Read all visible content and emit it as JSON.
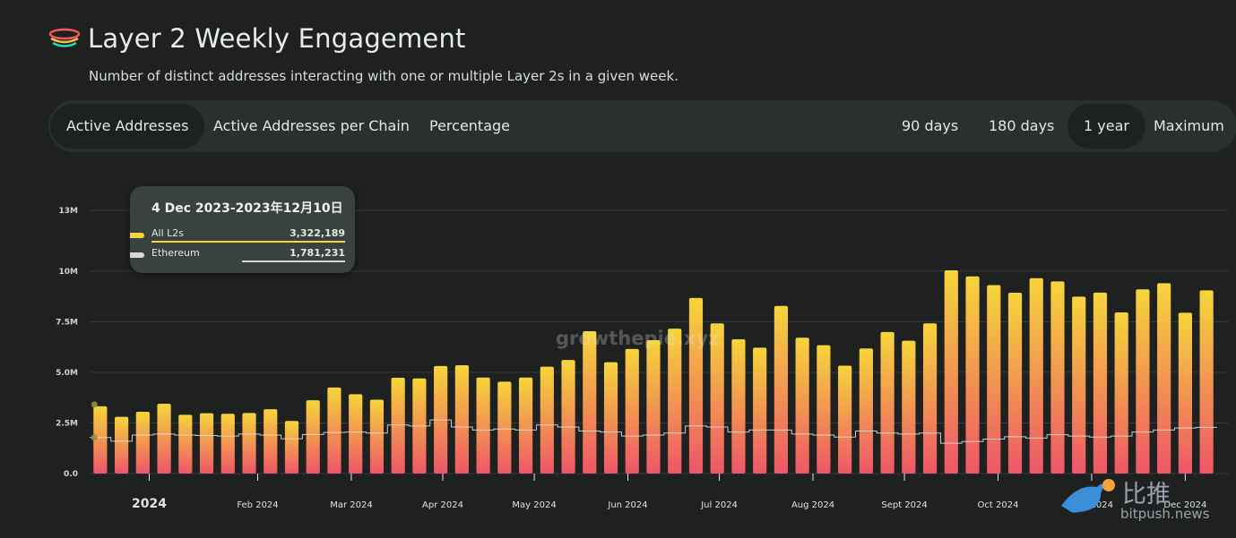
{
  "header": {
    "title": "Layer 2 Weekly Engagement",
    "subtitle": "Number of distinct addresses interacting with one or multiple Layer 2s in a given week.",
    "logo_icon": "layer2-stack-icon"
  },
  "tabs": [
    {
      "label": "Active Addresses",
      "active": true
    },
    {
      "label": "Active Addresses per Chain",
      "active": false
    },
    {
      "label": "Percentage",
      "active": false
    }
  ],
  "ranges": [
    {
      "label": "90 days",
      "active": false
    },
    {
      "label": "180 days",
      "active": false
    },
    {
      "label": "1 year",
      "active": true
    },
    {
      "label": "Maximum",
      "active": false
    }
  ],
  "tooltip": {
    "title": "4 Dec 2023-2023年12月10日",
    "rows": [
      {
        "name": "All L2s",
        "value": "3,322,189",
        "color": "#f5d63c"
      },
      {
        "name": "Ethereum",
        "value": "1,781,231",
        "color": "#d8d8d8"
      }
    ]
  },
  "watermarks": {
    "site": "growthepie.xyz",
    "brand": "比推",
    "brand_url": "bitpush.news"
  },
  "chart_data": {
    "type": "bar",
    "ylim": [
      0,
      13000000
    ],
    "yticks": [
      {
        "value": 0,
        "label": "0.0"
      },
      {
        "value": 2500000,
        "label": "2.5M"
      },
      {
        "value": 5000000,
        "label": "5.0M"
      },
      {
        "value": 7500000,
        "label": "7.5M"
      },
      {
        "value": 10000000,
        "label": "10M"
      },
      {
        "value": 13000000,
        "label": "13M"
      }
    ],
    "x_labels": [
      {
        "week": 2.8,
        "label": "2024",
        "major": true
      },
      {
        "week": 7.9,
        "label": "Feb 2024"
      },
      {
        "week": 12.3,
        "label": "Mar 2024"
      },
      {
        "week": 16.6,
        "label": "Apr 2024"
      },
      {
        "week": 20.9,
        "label": "May 2024"
      },
      {
        "week": 25.3,
        "label": "Jun 2024"
      },
      {
        "week": 29.6,
        "label": "Jul 2024"
      },
      {
        "week": 34.0,
        "label": "Aug 2024"
      },
      {
        "week": 38.3,
        "label": "Sept 2024"
      },
      {
        "week": 42.7,
        "label": "Oct 2024"
      },
      {
        "week": 47.1,
        "label": "Nov 2024"
      },
      {
        "week": 51.5,
        "label": "Dec 2024"
      }
    ],
    "series": [
      {
        "name": "All L2s",
        "values": [
          3322189,
          2800000,
          3050000,
          3450000,
          2900000,
          2980000,
          2950000,
          2990000,
          3180000,
          2600000,
          3620000,
          4250000,
          3920000,
          3650000,
          4730000,
          4700000,
          5310000,
          5350000,
          4740000,
          4540000,
          4740000,
          5280000,
          5610000,
          7030000,
          5500000,
          6150000,
          6590000,
          7160000,
          8670000,
          7420000,
          6630000,
          6220000,
          8280000,
          6710000,
          6340000,
          5330000,
          6180000,
          6990000,
          6560000,
          7420000,
          10040000,
          9740000,
          9310000,
          8930000,
          9650000,
          9490000,
          8740000,
          8940000,
          7960000,
          9100000,
          9400000,
          7940000,
          9050000
        ]
      },
      {
        "name": "Ethereum",
        "values": [
          1781231,
          1600000,
          1900000,
          1950000,
          1900000,
          1880000,
          1850000,
          1950000,
          1900000,
          1720000,
          1930000,
          2030000,
          2050000,
          2000000,
          2400000,
          2350000,
          2650000,
          2300000,
          2150000,
          2200000,
          2150000,
          2400000,
          2300000,
          2100000,
          2050000,
          1850000,
          1900000,
          2000000,
          2350000,
          2300000,
          2050000,
          2150000,
          2150000,
          1950000,
          1900000,
          1800000,
          2100000,
          2000000,
          1950000,
          2000000,
          1500000,
          1580000,
          1700000,
          1820000,
          1750000,
          1920000,
          1850000,
          1800000,
          1850000,
          2050000,
          2150000,
          2250000,
          2280000
        ]
      }
    ],
    "colors": {
      "bar_top": "#f6d53a",
      "bar_bottom": "#ee5668",
      "line": "#e6e6e6"
    }
  }
}
